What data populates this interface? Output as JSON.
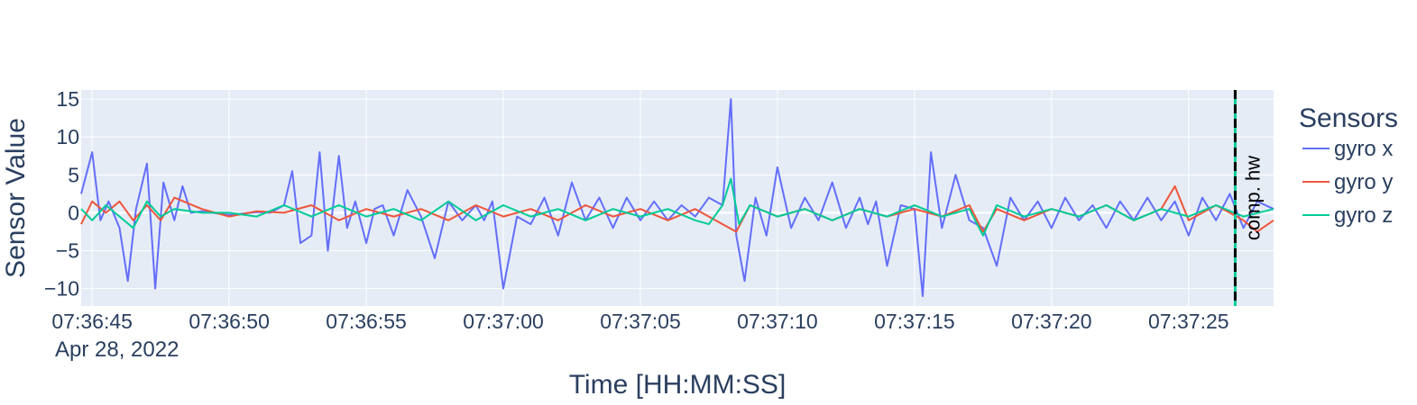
{
  "chart_data": {
    "type": "line",
    "title": "",
    "xlabel": "Time [HH:MM:SS]",
    "ylabel": "Sensor Value",
    "date_label": "Apr 28, 2022",
    "x_range": [
      "07:36:44.6",
      "07:37:28.1"
    ],
    "ylim": [
      -12.3,
      16.2
    ],
    "x_ticks": [
      "07:36:45",
      "07:36:50",
      "07:36:55",
      "07:37:00",
      "07:37:05",
      "07:37:10",
      "07:37:15",
      "07:37:20",
      "07:37:25"
    ],
    "y_ticks": [
      15,
      10,
      5,
      0,
      -5,
      -10
    ],
    "y_tick_labels": [
      "15",
      "10",
      "5",
      "0",
      "−5",
      "−10"
    ],
    "grid": true,
    "legend": {
      "title": "Sensors",
      "placement": "right"
    },
    "series": [
      {
        "name": "gyro x",
        "color": "#636efa",
        "x": [
          "07:36:44.6",
          "07:36:45.0",
          "07:36:45.3",
          "07:36:45.6",
          "07:36:46.0",
          "07:36:46.3",
          "07:36:46.6",
          "07:36:47.0",
          "07:36:47.3",
          "07:36:47.6",
          "07:36:48.0",
          "07:36:48.3",
          "07:36:48.6",
          "07:36:49.0",
          "07:36:50.0",
          "07:36:51.0",
          "07:36:51.5",
          "07:36:52.0",
          "07:36:52.3",
          "07:36:52.6",
          "07:36:53.0",
          "07:36:53.3",
          "07:36:53.6",
          "07:36:54.0",
          "07:36:54.3",
          "07:36:54.6",
          "07:36:55.0",
          "07:36:55.3",
          "07:36:55.6",
          "07:36:56.0",
          "07:36:56.5",
          "07:36:57.0",
          "07:36:57.5",
          "07:36:58.0",
          "07:36:58.5",
          "07:36:59.0",
          "07:36:59.3",
          "07:36:59.6",
          "07:37:00.0",
          "07:37:00.5",
          "07:37:01.0",
          "07:37:01.5",
          "07:37:02.0",
          "07:37:02.5",
          "07:37:03.0",
          "07:37:03.5",
          "07:37:04.0",
          "07:37:04.5",
          "07:37:05.0",
          "07:37:05.5",
          "07:37:06.0",
          "07:37:06.5",
          "07:37:07.0",
          "07:37:07.5",
          "07:37:08.0",
          "07:37:08.3",
          "07:37:08.5",
          "07:37:08.8",
          "07:37:09.2",
          "07:37:09.6",
          "07:37:10.0",
          "07:37:10.5",
          "07:37:11.0",
          "07:37:11.5",
          "07:37:12.0",
          "07:37:12.5",
          "07:37:13.0",
          "07:37:13.3",
          "07:37:13.6",
          "07:37:14.0",
          "07:37:14.5",
          "07:37:15.0",
          "07:37:15.3",
          "07:37:15.6",
          "07:37:16.0",
          "07:37:16.5",
          "07:37:17.0",
          "07:37:17.5",
          "07:37:18.0",
          "07:37:18.5",
          "07:37:19.0",
          "07:37:19.5",
          "07:37:20.0",
          "07:37:20.5",
          "07:37:21.0",
          "07:37:21.5",
          "07:37:22.0",
          "07:37:22.5",
          "07:37:23.0",
          "07:37:23.5",
          "07:37:24.0",
          "07:37:24.5",
          "07:37:25.0",
          "07:37:25.5",
          "07:37:26.0",
          "07:37:26.5",
          "07:37:27.0",
          "07:37:27.5",
          "07:37:28.1"
        ],
        "y": [
          2.5,
          8,
          -1,
          1.5,
          -2,
          -9,
          0.5,
          6.5,
          -10,
          4,
          -1,
          3.5,
          0,
          0.2,
          -0.3,
          0.1,
          0,
          1,
          5.5,
          -4,
          -3,
          8,
          -5,
          7.5,
          -2,
          1.5,
          -4,
          0.5,
          1,
          -3,
          3,
          -0.5,
          -6,
          1.5,
          -1,
          1,
          -1,
          1.5,
          -10,
          -0.5,
          -1.5,
          2,
          -3,
          4,
          -1,
          2,
          -2,
          2,
          -1,
          1.5,
          -1,
          1,
          -0.5,
          2,
          1,
          15,
          -3,
          -9,
          2,
          -3,
          6,
          -2,
          2,
          -1,
          4,
          -2,
          2,
          -1.5,
          1.5,
          -7,
          1,
          0.5,
          -11,
          8,
          -2,
          5,
          -1,
          -2,
          -7,
          2,
          -1,
          1.5,
          -2,
          2,
          -1,
          1,
          -2,
          1.5,
          -1,
          2,
          -1,
          1.5,
          -3,
          2,
          -1,
          2.5,
          -2,
          1.5,
          0.5
        ]
      },
      {
        "name": "gyro y",
        "color": "#ef553b",
        "x": [
          "07:36:44.6",
          "07:36:45.0",
          "07:36:45.5",
          "07:36:46.0",
          "07:36:46.5",
          "07:36:47.0",
          "07:36:47.5",
          "07:36:48.0",
          "07:36:49.0",
          "07:36:50.0",
          "07:36:51.0",
          "07:36:52.0",
          "07:36:53.0",
          "07:36:54.0",
          "07:36:55.0",
          "07:36:56.0",
          "07:36:57.0",
          "07:36:58.0",
          "07:36:59.0",
          "07:37:00.0",
          "07:37:01.0",
          "07:37:02.0",
          "07:37:03.0",
          "07:37:04.0",
          "07:37:05.0",
          "07:37:06.0",
          "07:37:07.0",
          "07:37:08.0",
          "07:37:08.5",
          "07:37:09.0",
          "07:37:10.0",
          "07:37:11.0",
          "07:37:12.0",
          "07:37:13.0",
          "07:37:14.0",
          "07:37:15.0",
          "07:37:16.0",
          "07:37:17.0",
          "07:37:17.5",
          "07:37:18.0",
          "07:37:19.0",
          "07:37:20.0",
          "07:37:21.0",
          "07:37:22.0",
          "07:37:23.0",
          "07:37:24.0",
          "07:37:24.5",
          "07:37:25.0",
          "07:37:26.0",
          "07:37:27.0",
          "07:37:27.5",
          "07:37:28.1"
        ],
        "y": [
          -1.5,
          1.5,
          0,
          1.5,
          -1,
          1,
          -1,
          2,
          0.5,
          -0.5,
          0.2,
          0,
          1,
          -1,
          0.5,
          -0.5,
          0.5,
          -1,
          1,
          -0.5,
          0.5,
          -1,
          1,
          -0.5,
          0.5,
          -1,
          0.5,
          -1.5,
          -2.5,
          1,
          -0.5,
          0.5,
          -1,
          0.5,
          -0.5,
          0.5,
          -0.5,
          1,
          -2.5,
          0.5,
          -1,
          0.5,
          -0.5,
          1,
          -1,
          0.5,
          3.5,
          -1,
          1,
          -1,
          -2.5,
          -1
        ]
      },
      {
        "name": "gyro z",
        "color": "#00cc96",
        "x": [
          "07:36:44.6",
          "07:36:45.0",
          "07:36:45.5",
          "07:36:46.0",
          "07:36:46.5",
          "07:36:47.0",
          "07:36:47.5",
          "07:36:48.0",
          "07:36:49.0",
          "07:36:50.0",
          "07:36:51.0",
          "07:36:52.0",
          "07:36:53.0",
          "07:36:54.0",
          "07:36:55.0",
          "07:36:56.0",
          "07:36:57.0",
          "07:36:58.0",
          "07:36:59.0",
          "07:37:00.0",
          "07:37:01.0",
          "07:37:02.0",
          "07:37:03.0",
          "07:37:04.0",
          "07:37:05.0",
          "07:37:06.0",
          "07:37:07.0",
          "07:37:07.5",
          "07:37:08.0",
          "07:37:08.3",
          "07:37:08.6",
          "07:37:09.0",
          "07:37:10.0",
          "07:37:11.0",
          "07:37:12.0",
          "07:37:13.0",
          "07:37:14.0",
          "07:37:15.0",
          "07:37:16.0",
          "07:37:17.0",
          "07:37:17.5",
          "07:37:18.0",
          "07:37:19.0",
          "07:37:20.0",
          "07:37:21.0",
          "07:37:22.0",
          "07:37:23.0",
          "07:37:24.0",
          "07:37:25.0",
          "07:37:26.0",
          "07:37:27.0",
          "07:37:28.1"
        ],
        "y": [
          0.5,
          -1,
          1,
          -0.5,
          -2,
          1.5,
          -0.5,
          0.5,
          0,
          0,
          -0.5,
          1,
          -0.5,
          1,
          -0.5,
          0.5,
          -1,
          1.5,
          -1,
          1,
          -0.5,
          0.5,
          -1,
          0.5,
          -0.5,
          0.5,
          -1,
          -1.5,
          1,
          4.5,
          -1.5,
          1,
          -0.5,
          0.5,
          -1,
          0.5,
          -0.5,
          1,
          -0.5,
          0.5,
          -3,
          1,
          -0.5,
          0.5,
          -0.5,
          1,
          -1,
          0.5,
          -0.5,
          1,
          -0.5,
          0.5
        ]
      }
    ],
    "annotation": {
      "text": "comp. hw",
      "x": "07:37:26.7",
      "colors": [
        "#00cc96",
        "#000000"
      ]
    }
  }
}
